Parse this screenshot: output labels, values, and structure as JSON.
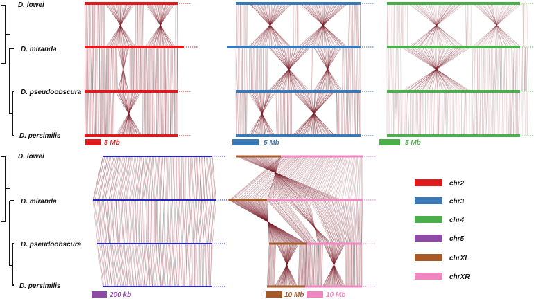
{
  "top_species": [
    "D. lowei",
    "D. miranda",
    "D. pseudoobscura",
    "D. persimilis"
  ],
  "bottom_species": [
    "D. lowei",
    "D. miranda",
    "D. pseudoobscura",
    "D. persimilis"
  ],
  "scale_bars": {
    "chr2": "5 Mb",
    "chr3": "5 Mb",
    "chr4": "5 Mb",
    "chr5": "200 kb",
    "chrXL": "10 Mb",
    "chrXR": "10 Mb"
  },
  "legend": [
    {
      "label": "chr2",
      "color": "#e0191c"
    },
    {
      "label": "chr3",
      "color": "#3a79b8"
    },
    {
      "label": "chr4",
      "color": "#4aae4a"
    },
    {
      "label": "chr5",
      "color": "#8e4aa6"
    },
    {
      "label": "chrXL",
      "color": "#a75a28"
    },
    {
      "label": "chrXR",
      "color": "#ef86c0"
    }
  ],
  "colors": {
    "link": "#7b1e2a",
    "chr2": "#e0191c",
    "chr3": "#3a79b8",
    "chr4": "#4aae4a",
    "chr5": "#2222cc",
    "chr5_scale": "#8e4aa6",
    "chrXL": "#a75a28",
    "chrXR": "#ef86c0"
  }
}
